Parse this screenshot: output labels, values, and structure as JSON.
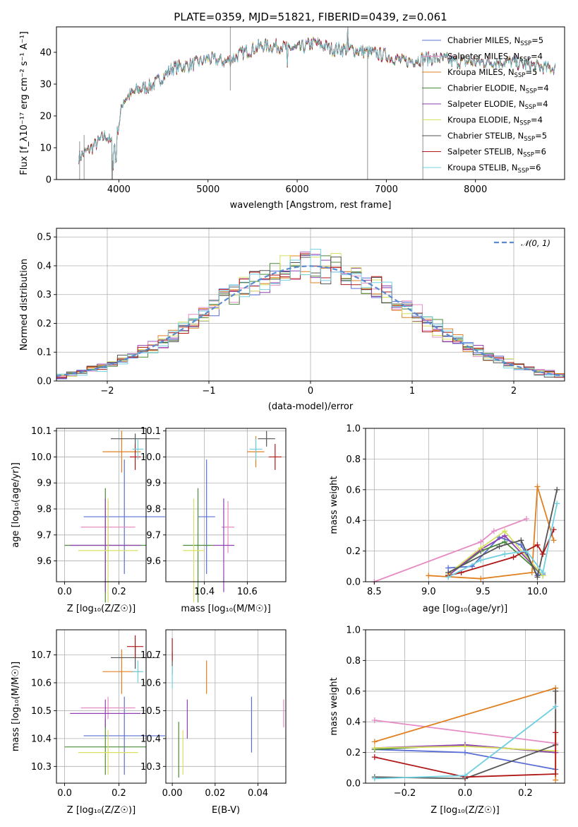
{
  "figure_title": "PLATE=0359, MJD=51821, FIBERID=0439, z=0.061",
  "colors": {
    "Chabrier MILES": "#5a6fd6",
    "Salpeter MILES": "#e68cc4",
    "Kroupa MILES": "#e08020",
    "Chabrier ELODIE": "#4a8a3a",
    "Salpeter ELODIE": "#9040b0",
    "Kroupa ELODIE": "#d8e060",
    "Chabrier STELIB": "#555555",
    "Salpeter STELIB": "#b01818",
    "Kroupa STELIB": "#70d0e0"
  },
  "chart_data": [
    {
      "type": "line",
      "panel": "spectrum",
      "xlabel": "wavelength [Angstrom, rest frame]",
      "ylabel": "Flux [f_λ10⁻¹⁷ erg cm⁻² s⁻¹ A⁻¹]",
      "xlim": [
        3300,
        9000
      ],
      "ylim": [
        0,
        48
      ],
      "xticks": [
        "4000",
        "5000",
        "6000",
        "7000",
        "8000"
      ],
      "yticks": [
        "0",
        "10",
        "20",
        "30",
        "40"
      ],
      "grid": false,
      "legend_position": "top-right",
      "x": [
        3550,
        3700,
        3850,
        3950,
        4050,
        4200,
        4400,
        4600,
        4800,
        5000,
        5200,
        5400,
        5600,
        5800,
        6000,
        6200,
        6400,
        6600,
        6800,
        7000,
        7200,
        7400,
        7600,
        7800,
        8000,
        8200,
        8400,
        8600,
        8800,
        8900
      ],
      "y": [
        7,
        10,
        14,
        10,
        25,
        28,
        30,
        35,
        36,
        38,
        37,
        40,
        42,
        42,
        41,
        43,
        41,
        41,
        40,
        39,
        37,
        38,
        38,
        37,
        37,
        37,
        37,
        36,
        35,
        35
      ],
      "series": [
        {
          "name": "Chabrier MILES, N_SSP=5",
          "label": "Chabrier MILES, N",
          "sub": "SSP",
          "nssp": "=5"
        },
        {
          "name": "Salpeter MILES, N_SSP=4",
          "label": "Salpeter MILES, N",
          "sub": "SSP",
          "nssp": "=4"
        },
        {
          "name": "Kroupa MILES, N_SSP=5",
          "label": "Kroupa MILES, N",
          "sub": "SSP",
          "nssp": "=5"
        },
        {
          "name": "Chabrier ELODIE, N_SSP=4",
          "label": "Chabrier ELODIE, N",
          "sub": "SSP",
          "nssp": "=4"
        },
        {
          "name": "Salpeter ELODIE, N_SSP=4",
          "label": "Salpeter ELODIE, N",
          "sub": "SSP",
          "nssp": "=4"
        },
        {
          "name": "Kroupa ELODIE, N_SSP=4",
          "label": "Kroupa ELODIE, N",
          "sub": "SSP",
          "nssp": "=4"
        },
        {
          "name": "Chabrier STELIB, N_SSP=5",
          "label": "Chabrier STELIB, N",
          "sub": "SSP",
          "nssp": "=5"
        },
        {
          "name": "Salpeter STELIB, N_SSP=6",
          "label": "Salpeter STELIB, N",
          "sub": "SSP",
          "nssp": "=6"
        },
        {
          "name": "Kroupa STELIB, N_SSP=6",
          "label": "Kroupa STELIB, N",
          "sub": "SSP",
          "nssp": "=6"
        }
      ]
    },
    {
      "type": "line",
      "panel": "residuals",
      "xlabel": "(data-model)/error",
      "ylabel": "Normed distribution",
      "xlim": [
        -2.5,
        2.5
      ],
      "ylim": [
        0,
        0.53
      ],
      "xticks": [
        "−2",
        "−1",
        "0",
        "1",
        "2"
      ],
      "yticks": [
        "0.0",
        "0.1",
        "0.2",
        "0.3",
        "0.4",
        "0.5"
      ],
      "grid": true,
      "legend_position": "top-right",
      "legend": [
        "𝒩(0, 1)"
      ],
      "bin_width": 0.1,
      "note": "nine step histograms, one per model, and a dashed normal curve"
    },
    {
      "type": "scatter",
      "panel": "age-vs-Z",
      "xlabel": "Z [log₁₀(Z/Z☉)]",
      "ylabel": "age  [log₁₀(age/yr)]",
      "xlim": [
        -0.03,
        0.3
      ],
      "ylim": [
        9.52,
        10.11
      ],
      "xticks": [
        "0.0",
        "0.2"
      ],
      "yticks": [
        "9.6",
        "9.7",
        "9.8",
        "9.9",
        "10.0",
        "10.1"
      ],
      "grid": true,
      "points": [
        {
          "series": "Chabrier MILES",
          "x": 0.22,
          "y": 9.77,
          "xerr": 0.15,
          "yerr": 0.22
        },
        {
          "series": "Salpeter MILES",
          "x": 0.16,
          "y": 9.73,
          "xerr": 0.1,
          "yerr": 0.1
        },
        {
          "series": "Kroupa MILES",
          "x": 0.21,
          "y": 10.02,
          "xerr": 0.07,
          "yerr": 0.08
        },
        {
          "series": "Chabrier ELODIE",
          "x": 0.15,
          "y": 9.66,
          "xerr": 0.15,
          "yerr": 0.22
        },
        {
          "series": "Salpeter ELODIE",
          "x": 0.15,
          "y": 9.66,
          "xerr": 0.13,
          "yerr": 0.18
        },
        {
          "series": "Kroupa ELODIE",
          "x": 0.16,
          "y": 9.64,
          "xerr": 0.11,
          "yerr": 0.2
        },
        {
          "series": "Chabrier STELIB",
          "x": 0.26,
          "y": 10.07,
          "xerr": 0.09,
          "yerr": 0.02
        },
        {
          "series": "Salpeter STELIB",
          "x": 0.26,
          "y": 10.0,
          "xerr": 0.02,
          "yerr": 0.05
        },
        {
          "series": "Kroupa STELIB",
          "x": 0.27,
          "y": 10.03,
          "xerr": 0.02,
          "yerr": 0.04
        }
      ]
    },
    {
      "type": "scatter",
      "panel": "age-vs-mass",
      "xlabel": "mass [log₁₀(M/M☉)]",
      "ylabel": "",
      "xlim": [
        10.22,
        10.78
      ],
      "ylim": [
        9.52,
        10.11
      ],
      "xticks": [
        "10.4",
        "10.6"
      ],
      "yticks": [
        "9.6",
        "9.7",
        "9.8",
        "9.9",
        "10.0",
        "10.1"
      ],
      "grid": true,
      "points": [
        {
          "series": "Chabrier MILES",
          "x": 10.41,
          "y": 9.77,
          "xerr": 0.04,
          "yerr": 0.22
        },
        {
          "series": "Salpeter MILES",
          "x": 10.51,
          "y": 9.73,
          "xerr": 0.03,
          "yerr": 0.1
        },
        {
          "series": "Kroupa MILES",
          "x": 10.64,
          "y": 10.02,
          "xerr": 0.04,
          "yerr": 0.06
        },
        {
          "series": "Chabrier ELODIE",
          "x": 10.37,
          "y": 9.66,
          "xerr": 0.07,
          "yerr": 0.22
        },
        {
          "series": "Salpeter ELODIE",
          "x": 10.49,
          "y": 9.66,
          "xerr": 0.05,
          "yerr": 0.18
        },
        {
          "series": "Kroupa ELODIE",
          "x": 10.35,
          "y": 9.64,
          "xerr": 0.05,
          "yerr": 0.2
        },
        {
          "series": "Chabrier STELIB",
          "x": 10.69,
          "y": 10.07,
          "xerr": 0.04,
          "yerr": 0.03
        },
        {
          "series": "Salpeter STELIB",
          "x": 10.73,
          "y": 10.0,
          "xerr": 0.03,
          "yerr": 0.05
        },
        {
          "series": "Kroupa STELIB",
          "x": 10.64,
          "y": 10.03,
          "xerr": 0.03,
          "yerr": 0.04
        }
      ]
    },
    {
      "type": "line",
      "panel": "mass-weight-vs-age",
      "xlabel": "age  [log₁₀(age/yr)]",
      "ylabel": "mass weight",
      "xlim": [
        8.42,
        10.25
      ],
      "ylim": [
        0,
        1.0
      ],
      "xticks": [
        "8.5",
        "9.0",
        "9.5",
        "10.0"
      ],
      "yticks": [
        "0.0",
        "0.2",
        "0.4",
        "0.6",
        "0.8",
        "1.0"
      ],
      "grid": true,
      "series": [
        {
          "name": "Chabrier MILES",
          "x": [
            9.18,
            9.4,
            9.65,
            9.85,
            10.0,
            10.05
          ],
          "y": [
            0.09,
            0.1,
            0.29,
            0.24,
            0.04,
            0.05
          ]
        },
        {
          "name": "Salpeter MILES",
          "x": [
            8.5,
            9.48,
            9.6,
            9.9
          ],
          "y": [
            0.0,
            0.26,
            0.33,
            0.41
          ]
        },
        {
          "name": "Kroupa MILES",
          "x": [
            9.0,
            9.48,
            9.95,
            10.0,
            10.15
          ],
          "y": [
            0.04,
            0.02,
            0.06,
            0.62,
            0.27
          ]
        },
        {
          "name": "Chabrier ELODIE",
          "x": [
            9.18,
            9.48,
            9.7,
            10.05
          ],
          "y": [
            0.04,
            0.2,
            0.26,
            0.04
          ]
        },
        {
          "name": "Salpeter ELODIE",
          "x": [
            9.18,
            9.48,
            9.7,
            10.05
          ],
          "y": [
            0.04,
            0.21,
            0.3,
            0.04
          ]
        },
        {
          "name": "Kroupa ELODIE",
          "x": [
            9.18,
            9.48,
            9.7,
            10.05
          ],
          "y": [
            0.05,
            0.22,
            0.33,
            0.04
          ]
        },
        {
          "name": "Chabrier STELIB",
          "x": [
            9.18,
            9.65,
            9.85,
            10.0,
            10.18
          ],
          "y": [
            0.06,
            0.23,
            0.27,
            0.03,
            0.6
          ]
        },
        {
          "name": "Salpeter STELIB",
          "x": [
            9.18,
            9.3,
            9.78,
            10.0,
            10.05,
            10.15
          ],
          "y": [
            0.04,
            0.06,
            0.16,
            0.24,
            0.18,
            0.34
          ]
        },
        {
          "name": "Kroupa STELIB",
          "x": [
            9.18,
            9.48,
            9.7,
            9.9,
            10.05,
            10.18
          ],
          "y": [
            0.03,
            0.14,
            0.18,
            0.2,
            0.06,
            0.51
          ]
        }
      ]
    },
    {
      "type": "scatter",
      "panel": "mass-vs-Z",
      "xlabel": "Z [log₁₀(Z/Z☉)]",
      "ylabel": "mass [log₁₀(M/M☉)]",
      "xlim": [
        -0.03,
        0.3
      ],
      "ylim": [
        10.24,
        10.79
      ],
      "xticks": [
        "0.0",
        "0.2"
      ],
      "yticks": [
        "10.3",
        "10.4",
        "10.5",
        "10.6",
        "10.7"
      ],
      "grid": true,
      "points": [
        {
          "series": "Chabrier MILES",
          "x": 0.22,
          "y": 10.41,
          "xerr": 0.15,
          "yerr": 0.14
        },
        {
          "series": "Salpeter MILES",
          "x": 0.16,
          "y": 10.51,
          "xerr": 0.1,
          "yerr": 0.04
        },
        {
          "series": "Kroupa MILES",
          "x": 0.21,
          "y": 10.64,
          "xerr": 0.07,
          "yerr": 0.08
        },
        {
          "series": "Chabrier ELODIE",
          "x": 0.15,
          "y": 10.37,
          "xerr": 0.15,
          "yerr": 0.1
        },
        {
          "series": "Salpeter ELODIE",
          "x": 0.15,
          "y": 10.49,
          "xerr": 0.13,
          "yerr": 0.05
        },
        {
          "series": "Kroupa ELODIE",
          "x": 0.16,
          "y": 10.35,
          "xerr": 0.11,
          "yerr": 0.08
        },
        {
          "series": "Chabrier STELIB",
          "x": 0.26,
          "y": 10.69,
          "xerr": 0.09,
          "yerr": 0.04
        },
        {
          "series": "Salpeter STELIB",
          "x": 0.26,
          "y": 10.73,
          "xerr": 0.03,
          "yerr": 0.04
        },
        {
          "series": "Kroupa STELIB",
          "x": 0.27,
          "y": 10.64,
          "xerr": 0.02,
          "yerr": 0.04
        }
      ]
    },
    {
      "type": "scatter",
      "panel": "mass-vs-EBV",
      "xlabel": "E(B-V)",
      "ylabel": "",
      "xlim": [
        -0.003,
        0.053
      ],
      "ylim": [
        10.24,
        10.79
      ],
      "xticks": [
        "0.00",
        "0.02",
        "0.04"
      ],
      "yticks": [
        "10.3",
        "10.4",
        "10.5",
        "10.6",
        "10.7"
      ],
      "grid": true,
      "points": [
        {
          "series": "Chabrier MILES",
          "x": 0.037,
          "y": 10.45,
          "yerr": 0.1
        },
        {
          "series": "Salpeter MILES",
          "x": 0.052,
          "y": 10.49,
          "yerr": 0.05
        },
        {
          "series": "Kroupa MILES",
          "x": 0.016,
          "y": 10.62,
          "yerr": 0.06
        },
        {
          "series": "Chabrier ELODIE",
          "x": 0.003,
          "y": 10.36,
          "yerr": 0.1
        },
        {
          "series": "Salpeter ELODIE",
          "x": 0.007,
          "y": 10.47,
          "yerr": 0.07
        },
        {
          "series": "Kroupa ELODIE",
          "x": 0.005,
          "y": 10.35,
          "yerr": 0.08
        },
        {
          "series": "Chabrier STELIB",
          "x": 0.0,
          "y": 10.67,
          "yerr": 0.04
        },
        {
          "series": "Salpeter STELIB",
          "x": 0.0,
          "y": 10.72,
          "yerr": 0.04
        },
        {
          "series": "Kroupa STELIB",
          "x": 0.0,
          "y": 10.62,
          "yerr": 0.04
        }
      ]
    },
    {
      "type": "line",
      "panel": "mass-weight-vs-Z",
      "xlabel": "Z [log₁₀(Z/Z☉)]",
      "ylabel": "mass weight",
      "xlim": [
        -0.33,
        0.33
      ],
      "ylim": [
        0,
        1.0
      ],
      "xticks": [
        "−0.2",
        "0.0",
        "0.2"
      ],
      "yticks": [
        "0.0",
        "0.2",
        "0.4",
        "0.6",
        "0.8",
        "1.0"
      ],
      "grid": true,
      "series": [
        {
          "name": "Chabrier MILES",
          "x": [
            -0.3,
            0.0,
            0.3
          ],
          "y": [
            0.22,
            0.2,
            0.09
          ]
        },
        {
          "name": "Salpeter MILES",
          "x": [
            -0.3,
            0.3
          ],
          "y": [
            0.41,
            0.26
          ]
        },
        {
          "name": "Kroupa MILES",
          "x": [
            -0.3,
            0.3,
            0.3
          ],
          "y": [
            0.27,
            0.62,
            0.02
          ]
        },
        {
          "name": "Chabrier ELODIE",
          "x": [
            -0.3,
            0.0,
            0.3
          ],
          "y": [
            0.22,
            0.25,
            0.2
          ]
        },
        {
          "name": "Salpeter ELODIE",
          "x": [
            -0.3,
            0.0,
            0.3
          ],
          "y": [
            0.23,
            0.25,
            0.2
          ]
        },
        {
          "name": "Kroupa ELODIE",
          "x": [
            -0.3,
            0.0,
            0.3
          ],
          "y": [
            0.23,
            0.24,
            0.21
          ]
        },
        {
          "name": "Chabrier STELIB",
          "x": [
            -0.3,
            0.0,
            0.3,
            0.3
          ],
          "y": [
            0.04,
            0.03,
            0.25,
            0.6
          ]
        },
        {
          "name": "Salpeter STELIB",
          "x": [
            -0.3,
            0.0,
            0.3,
            0.3
          ],
          "y": [
            0.17,
            0.04,
            0.06,
            0.33
          ]
        },
        {
          "name": "Kroupa STELIB",
          "x": [
            -0.3,
            0.0,
            0.3
          ],
          "y": [
            0.03,
            0.05,
            0.5
          ]
        }
      ]
    }
  ]
}
